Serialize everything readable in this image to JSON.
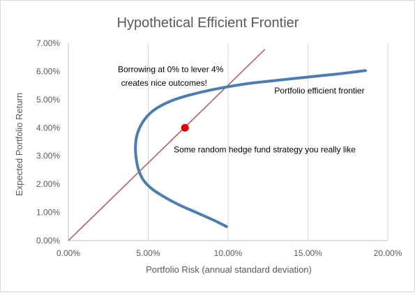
{
  "chart_data": {
    "type": "line",
    "title": "Hypothetical Efficient Frontier",
    "xlabel": "Portfolio Risk (annual standard deviation)",
    "ylabel": "Expected Portfolio Return",
    "xlim": [
      0,
      0.2
    ],
    "ylim": [
      0,
      0.07
    ],
    "x_ticks": [
      "0.00%",
      "5.00%",
      "10.00%",
      "15.00%",
      "20.00%"
    ],
    "y_ticks": [
      "0.00%",
      "1.00%",
      "2.00%",
      "3.00%",
      "4.00%",
      "5.00%",
      "6.00%",
      "7.00%"
    ],
    "grid": "vertical",
    "legend": "none",
    "series": [
      {
        "name": "Portfolio efficient frontier",
        "color": "#4a7db3",
        "x": [
          0.099,
          0.09,
          0.08,
          0.07,
          0.06,
          0.052,
          0.047,
          0.044,
          0.0425,
          0.042,
          0.0428,
          0.0455,
          0.05,
          0.056,
          0.065,
          0.075,
          0.09,
          0.11,
          0.13,
          0.15,
          0.17,
          0.186
        ],
        "y": [
          0.005,
          0.0075,
          0.01,
          0.0125,
          0.0155,
          0.0185,
          0.0215,
          0.025,
          0.029,
          0.033,
          0.037,
          0.041,
          0.0445,
          0.0472,
          0.0497,
          0.0515,
          0.0535,
          0.0555,
          0.0568,
          0.058,
          0.0592,
          0.0603
        ]
      },
      {
        "color": "#b85450",
        "x": [
          0,
          0.123
        ],
        "y": [
          0,
          0.0678
        ]
      }
    ],
    "points": [
      {
        "x": 0.073,
        "y": 0.04,
        "color": "#e00000"
      }
    ],
    "annotations": [
      {
        "text": "Borrowing at 0% to lever 4%",
        "x": 0.031,
        "y": 0.0597
      },
      {
        "text": "creates nice outcomes!",
        "x": 0.033,
        "y": 0.0549
      },
      {
        "text": "Portfolio efficient frontier",
        "x": 0.129,
        "y": 0.0522
      },
      {
        "text": "Some random hedge fund strategy you really like",
        "x": 0.066,
        "y": 0.0313
      }
    ]
  }
}
